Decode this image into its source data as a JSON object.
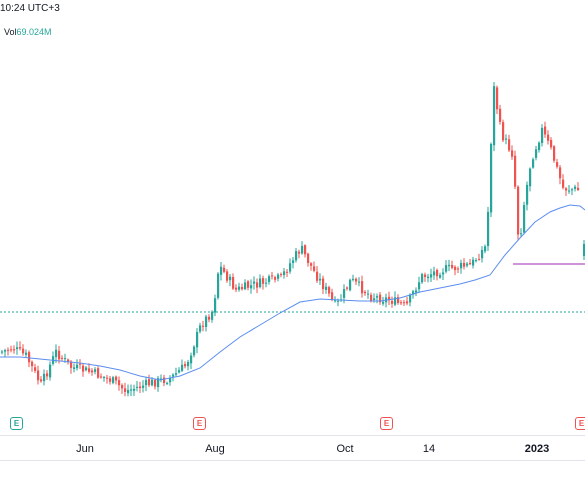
{
  "header": {
    "time_text": "10:24 UTC+3",
    "volume_prefix": "Vol",
    "volume_value": "69.024M"
  },
  "colors": {
    "up": "#26a69a",
    "down": "#ef5350",
    "ma": "#5b8def",
    "level_line": "#9c27b0",
    "dotted_line": "#26a69a"
  },
  "events": [
    {
      "label": "E",
      "color": "#26a69a"
    },
    {
      "label": "E",
      "color": "#ef5350"
    },
    {
      "label": "E",
      "color": "#ef5350"
    },
    {
      "label": "E",
      "color": "#ef5350"
    }
  ],
  "x_axis": {
    "ticks": [
      {
        "label": "Jun",
        "bold": false
      },
      {
        "label": "Aug",
        "bold": false
      },
      {
        "label": "Oct",
        "bold": false
      },
      {
        "label": "14",
        "bold": false
      },
      {
        "label": "2023",
        "bold": true
      }
    ]
  },
  "chart_data": {
    "type": "candlestick",
    "title": "",
    "xlabel": "",
    "ylabel": "",
    "seed": 7,
    "segments": [
      [
        0,
        352
      ],
      [
        12,
        348
      ],
      [
        25,
        356
      ],
      [
        40,
        385
      ],
      [
        55,
        352
      ],
      [
        70,
        367
      ],
      [
        90,
        372
      ],
      [
        110,
        380
      ],
      [
        125,
        391
      ],
      [
        150,
        383
      ],
      [
        170,
        378
      ],
      [
        185,
        365
      ],
      [
        200,
        325
      ],
      [
        212,
        310
      ],
      [
        218,
        265
      ],
      [
        235,
        290
      ],
      [
        260,
        283
      ],
      [
        280,
        278
      ],
      [
        290,
        262
      ],
      [
        300,
        248
      ],
      [
        312,
        270
      ],
      [
        325,
        290
      ],
      [
        335,
        307
      ],
      [
        350,
        280
      ],
      [
        370,
        296
      ],
      [
        390,
        300
      ],
      [
        405,
        307
      ],
      [
        420,
        277
      ],
      [
        440,
        270
      ],
      [
        470,
        265
      ],
      [
        484,
        247
      ],
      [
        488,
        200
      ],
      [
        492,
        82
      ],
      [
        500,
        133
      ],
      [
        512,
        155
      ],
      [
        518,
        248
      ],
      [
        522,
        210
      ],
      [
        530,
        160
      ],
      [
        541,
        130
      ],
      [
        550,
        150
      ],
      [
        562,
        188
      ],
      [
        578,
        190
      ]
    ],
    "gaps": [
      [
        578,
        582
      ]
    ],
    "tail": [
      [
        583,
        244
      ],
      [
        585,
        232
      ]
    ],
    "ma": [
      [
        0,
        357
      ],
      [
        20,
        357
      ],
      [
        40,
        359
      ],
      [
        60,
        361
      ],
      [
        80,
        363
      ],
      [
        100,
        366
      ],
      [
        120,
        370
      ],
      [
        140,
        376
      ],
      [
        160,
        380
      ],
      [
        180,
        376
      ],
      [
        200,
        368
      ],
      [
        220,
        352
      ],
      [
        240,
        337
      ],
      [
        260,
        325
      ],
      [
        280,
        313
      ],
      [
        300,
        302
      ],
      [
        320,
        299
      ],
      [
        340,
        300
      ],
      [
        360,
        301
      ],
      [
        380,
        301
      ],
      [
        400,
        298
      ],
      [
        420,
        292
      ],
      [
        440,
        288
      ],
      [
        460,
        284
      ],
      [
        475,
        280
      ],
      [
        490,
        275
      ],
      [
        505,
        255
      ],
      [
        520,
        238
      ],
      [
        535,
        222
      ],
      [
        550,
        212
      ],
      [
        560,
        208
      ],
      [
        570,
        205
      ],
      [
        580,
        206
      ],
      [
        585,
        210
      ]
    ],
    "level_line": {
      "x_from": 513,
      "x_to": 585,
      "y": 264
    },
    "dotted_line": {
      "y": 312
    }
  }
}
